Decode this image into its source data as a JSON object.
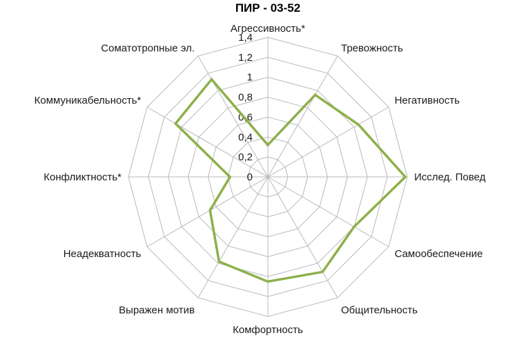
{
  "chart_data": {
    "type": "radar",
    "title": "ПИР - 03-52",
    "categories": [
      "Агрессивность*",
      "Тревожность",
      "Негативность",
      "Исслед. Повед",
      "Самообеспечение",
      "Общительность",
      "Комфортность",
      "Выражен мотив",
      "Неадекватность",
      "Конфликтность*",
      "Коммуникабельность*",
      "Соматотропные эл."
    ],
    "series": [
      {
        "values": [
          0.32,
          0.95,
          1.05,
          1.38,
          1.0,
          1.1,
          1.05,
          0.98,
          0.67,
          0.38,
          1.07,
          1.13
        ]
      }
    ],
    "rlim": [
      0,
      1.4
    ],
    "ticks": [
      "0",
      "0,2",
      "0,4",
      "0,6",
      "0,8",
      "1",
      "1,2",
      "1,4"
    ],
    "tick_values": [
      0,
      0.2,
      0.4,
      0.6,
      0.8,
      1.0,
      1.2,
      1.4
    ],
    "grid": true,
    "legend": "none",
    "colors": {
      "series": "#8db04a",
      "grid": "#b8b8b8"
    }
  }
}
